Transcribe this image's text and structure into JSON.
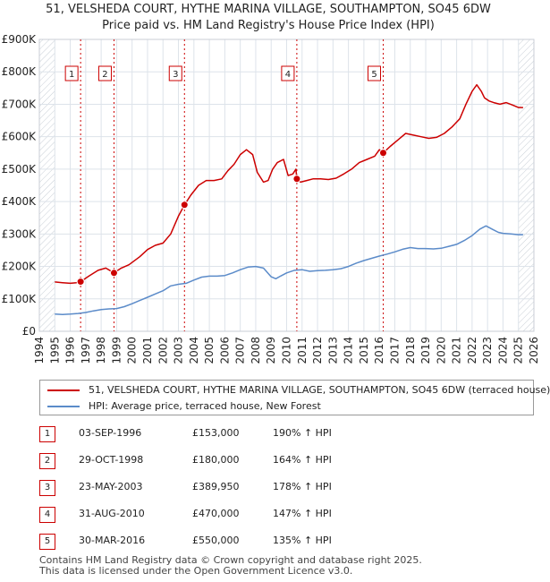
{
  "header": {
    "title_line1": "51, VELSHEDA COURT, HYTHE MARINA VILLAGE, SOUTHAMPTON, SO45 6DW",
    "title_line2": "Price paid vs. HM Land Registry's House Price Index (HPI)"
  },
  "colors": {
    "property": "#cc0000",
    "hpi": "#5b8bc9",
    "grid": "#dde3ea",
    "plot_bg": "#ffffff",
    "sale_line": "#cc0000"
  },
  "chart_data": {
    "type": "line",
    "title": "Price paid vs. HM Land Registry's House Price Index (HPI)",
    "xlabel": "",
    "ylabel": "",
    "xlim": [
      1994.0,
      2026.0
    ],
    "ylim": [
      0,
      900000
    ],
    "y_ticks": [
      0,
      100000,
      200000,
      300000,
      400000,
      500000,
      600000,
      700000,
      800000,
      900000
    ],
    "y_tick_labels": [
      "£0",
      "£100K",
      "£200K",
      "£300K",
      "£400K",
      "£500K",
      "£600K",
      "£700K",
      "£800K",
      "£900K"
    ],
    "x_ticks": [
      1994,
      1995,
      1996,
      1997,
      1998,
      1999,
      2000,
      2001,
      2002,
      2003,
      2004,
      2005,
      2006,
      2007,
      2008,
      2009,
      2010,
      2011,
      2012,
      2013,
      2014,
      2015,
      2016,
      2017,
      2018,
      2019,
      2020,
      2021,
      2022,
      2023,
      2024,
      2025,
      2026
    ],
    "x_tick_labels": [
      "1994",
      "1995",
      "1996",
      "1997",
      "1998",
      "1999",
      "2000",
      "2001",
      "2002",
      "2003",
      "2004",
      "2005",
      "2006",
      "2007",
      "2008",
      "2009",
      "2010",
      "2011",
      "2012",
      "2013",
      "2014",
      "2015",
      "2016",
      "2017",
      "2018",
      "2019",
      "2020",
      "2021",
      "2022",
      "2023",
      "2024",
      "2025",
      "2026"
    ],
    "hatched_ranges": [
      [
        1994.0,
        1995.0
      ],
      [
        2025.0,
        2026.0
      ]
    ],
    "series": [
      {
        "name": "51, VELSHEDA COURT, HYTHE MARINA VILLAGE, SOUTHAMPTON, SO45 6DW (terraced house)",
        "x": [
          1995.0,
          1995.5,
          1996.0,
          1996.4,
          1996.67,
          1997.2,
          1997.8,
          1998.3,
          1998.83,
          1999.3,
          1999.8,
          2000.5,
          2001.0,
          2001.5,
          2002.0,
          2002.5,
          2003.0,
          2003.39,
          2003.8,
          2004.3,
          2004.8,
          2005.3,
          2005.8,
          2006.2,
          2006.6,
          2007.0,
          2007.4,
          2007.8,
          2008.1,
          2008.5,
          2008.8,
          2009.1,
          2009.4,
          2009.8,
          2010.1,
          2010.4,
          2010.6,
          2010.66,
          2010.9,
          2011.3,
          2011.7,
          2012.2,
          2012.7,
          2013.2,
          2013.7,
          2014.2,
          2014.7,
          2015.2,
          2015.7,
          2016.0,
          2016.25,
          2016.7,
          2017.2,
          2017.7,
          2018.2,
          2018.7,
          2019.2,
          2019.7,
          2020.2,
          2020.7,
          2021.2,
          2021.6,
          2022.0,
          2022.3,
          2022.6,
          2022.8,
          2023.1,
          2023.4,
          2023.8,
          2024.2,
          2024.6,
          2025.0,
          2025.3
        ],
        "values": [
          152000,
          150000,
          148000,
          150000,
          153000,
          170000,
          188000,
          195000,
          180000,
          195000,
          205000,
          230000,
          252000,
          265000,
          272000,
          300000,
          355000,
          389950,
          420000,
          450000,
          465000,
          465000,
          470000,
          495000,
          515000,
          545000,
          560000,
          545000,
          490000,
          460000,
          465000,
          500000,
          520000,
          530000,
          480000,
          485000,
          500000,
          470000,
          460000,
          465000,
          470000,
          470000,
          468000,
          472000,
          485000,
          500000,
          520000,
          530000,
          540000,
          560000,
          550000,
          570000,
          590000,
          610000,
          605000,
          600000,
          595000,
          598000,
          610000,
          630000,
          655000,
          700000,
          740000,
          760000,
          740000,
          720000,
          710000,
          705000,
          700000,
          705000,
          698000,
          690000,
          690000
        ]
      },
      {
        "name": "HPI: Average price, terraced house, New Forest",
        "x": [
          1995.0,
          1995.5,
          1996.0,
          1996.5,
          1997.0,
          1997.5,
          1998.0,
          1998.5,
          1999.0,
          1999.5,
          2000.0,
          2000.5,
          2001.0,
          2001.5,
          2002.0,
          2002.5,
          2003.0,
          2003.5,
          2004.0,
          2004.5,
          2005.0,
          2005.5,
          2006.0,
          2006.5,
          2007.0,
          2007.5,
          2008.0,
          2008.5,
          2009.0,
          2009.3,
          2009.6,
          2010.0,
          2010.5,
          2011.0,
          2011.5,
          2012.0,
          2012.5,
          2013.0,
          2013.5,
          2014.0,
          2014.5,
          2015.0,
          2015.5,
          2016.0,
          2016.5,
          2017.0,
          2017.5,
          2018.0,
          2018.5,
          2019.0,
          2019.5,
          2020.0,
          2020.5,
          2021.0,
          2021.5,
          2022.0,
          2022.5,
          2022.9,
          2023.3,
          2023.7,
          2024.0,
          2024.5,
          2025.0,
          2025.3
        ],
        "values": [
          53000,
          52000,
          53000,
          55000,
          58000,
          63000,
          67000,
          69000,
          70000,
          76000,
          85000,
          95000,
          105000,
          115000,
          125000,
          140000,
          145000,
          148000,
          158000,
          167000,
          170000,
          170000,
          172000,
          180000,
          190000,
          198000,
          200000,
          195000,
          168000,
          162000,
          170000,
          180000,
          188000,
          190000,
          185000,
          187000,
          188000,
          190000,
          193000,
          200000,
          210000,
          218000,
          225000,
          232000,
          238000,
          245000,
          253000,
          258000,
          255000,
          255000,
          254000,
          256000,
          262000,
          268000,
          280000,
          295000,
          315000,
          325000,
          315000,
          305000,
          302000,
          300000,
          298000,
          298000
        ]
      }
    ],
    "sales": [
      {
        "label": "1",
        "x": 1996.67,
        "value": 153000
      },
      {
        "label": "2",
        "x": 1998.83,
        "value": 180000
      },
      {
        "label": "3",
        "x": 2003.39,
        "value": 389950
      },
      {
        "label": "4",
        "x": 2010.66,
        "value": 470000
      },
      {
        "label": "5",
        "x": 2016.25,
        "value": 550000
      }
    ]
  },
  "legend": {
    "property_label": "51, VELSHEDA COURT, HYTHE MARINA VILLAGE, SOUTHAMPTON, SO45 6DW (terraced house)",
    "hpi_label": "HPI: Average price, terraced house, New Forest"
  },
  "sales_table": [
    {
      "num": "1",
      "date": "03-SEP-1996",
      "price": "£153,000",
      "hpi": "190% ↑ HPI"
    },
    {
      "num": "2",
      "date": "29-OCT-1998",
      "price": "£180,000",
      "hpi": "164% ↑ HPI"
    },
    {
      "num": "3",
      "date": "23-MAY-2003",
      "price": "£389,950",
      "hpi": "178% ↑ HPI"
    },
    {
      "num": "4",
      "date": "31-AUG-2010",
      "price": "£470,000",
      "hpi": "147% ↑ HPI"
    },
    {
      "num": "5",
      "date": "30-MAR-2016",
      "price": "£550,000",
      "hpi": "135% ↑ HPI"
    }
  ],
  "footer": {
    "line1": "Contains HM Land Registry data © Crown copyright and database right 2025.",
    "line2": "This data is licensed under the Open Government Licence v3.0."
  }
}
